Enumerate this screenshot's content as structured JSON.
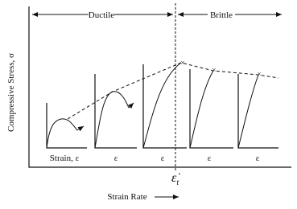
{
  "header": {
    "ductile": "Ductile",
    "brittle": "Brittle"
  },
  "axes": {
    "y_label": "Compressive Stress,  σ",
    "x_label": "Strain Rate"
  },
  "panels": [
    {
      "label": "Strain, ε"
    },
    {
      "label": "ε"
    },
    {
      "label": "ε"
    },
    {
      "label": "ε"
    },
    {
      "label": "ε"
    }
  ],
  "transition": {
    "symbol": "ε̇",
    "subscript": "t"
  }
}
